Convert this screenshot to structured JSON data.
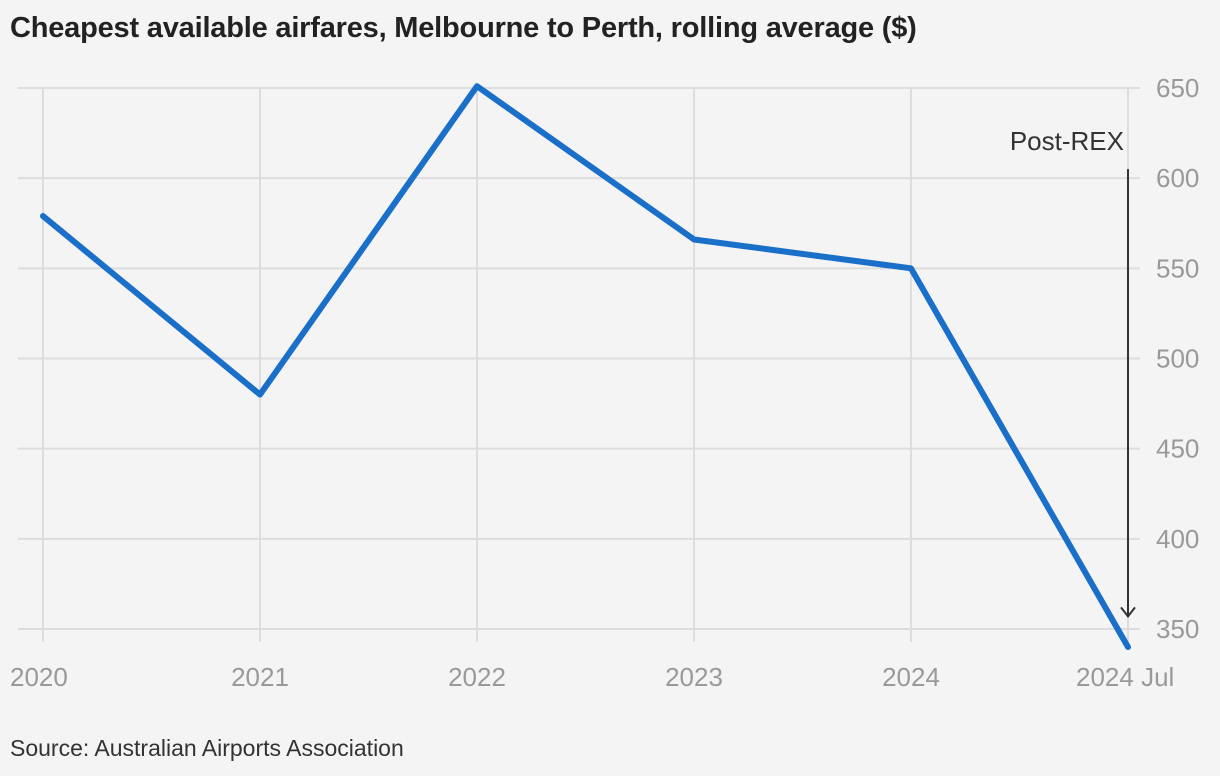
{
  "title": "Cheapest available airfares, Melbourne to Perth, rolling average ($)",
  "source": "Source: Australian Airports Association",
  "chart_data": {
    "type": "line",
    "title": "Cheapest available airfares, Melbourne to Perth, rolling average ($)",
    "xlabel": "",
    "ylabel": "",
    "categories": [
      "2020",
      "2021",
      "2022",
      "2023",
      "2024",
      "2024 Jul"
    ],
    "series": [
      {
        "values": [
          579,
          480,
          651,
          566,
          550,
          340
        ]
      }
    ],
    "ylim": [
      340,
      655
    ],
    "yticks": [
      350,
      400,
      450,
      500,
      550,
      600,
      650
    ],
    "y_axis_side": "right",
    "grid": true,
    "line_color": "#1a6fc9",
    "annotation": {
      "text": "Post-REX",
      "x": "2024 Jul",
      "arrow_from": 605,
      "arrow_to": 357
    }
  }
}
